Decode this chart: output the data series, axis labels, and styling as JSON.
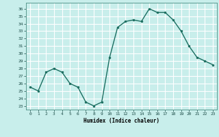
{
  "x": [
    0,
    1,
    2,
    3,
    4,
    5,
    6,
    7,
    8,
    9,
    10,
    11,
    12,
    13,
    14,
    15,
    16,
    17,
    18,
    19,
    20,
    21,
    22,
    23
  ],
  "y": [
    25.5,
    25.0,
    27.5,
    28.0,
    27.5,
    26.0,
    25.5,
    23.5,
    23.0,
    23.5,
    29.5,
    33.5,
    34.3,
    34.5,
    34.3,
    36.0,
    35.5,
    35.5,
    34.5,
    33.0,
    31.0,
    29.5,
    29.0,
    28.5
  ],
  "line_color": "#1a6e60",
  "marker_color": "#1a6e60",
  "bg_color": "#c8eeeb",
  "grid_color": "#ffffff",
  "xlabel": "Humidex (Indice chaleur)",
  "ylabel_ticks": [
    23,
    24,
    25,
    26,
    27,
    28,
    29,
    30,
    31,
    32,
    33,
    34,
    35,
    36
  ],
  "xticks": [
    0,
    1,
    2,
    3,
    4,
    5,
    6,
    7,
    8,
    9,
    10,
    11,
    12,
    13,
    14,
    15,
    16,
    17,
    18,
    19,
    20,
    21,
    22,
    23
  ],
  "xlim": [
    -0.5,
    23.5
  ],
  "ylim": [
    22.5,
    36.8
  ]
}
